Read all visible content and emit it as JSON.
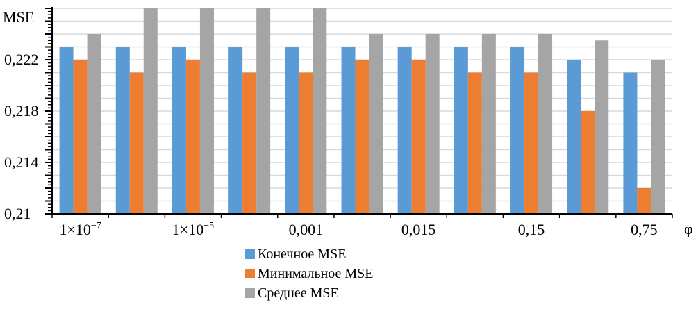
{
  "chart_data": {
    "type": "bar",
    "title": "",
    "ylabel": "MSE",
    "xlabel": "φ",
    "ylim": [
      0.21,
      0.226
    ],
    "y_ticks": [
      "0,21",
      "0,214",
      "0,218",
      "0,222"
    ],
    "y_tick_values": [
      0.21,
      0.214,
      0.218,
      0.222
    ],
    "x_tick_labels": [
      {
        "category_index": 0,
        "label": "1×10",
        "sup": "−7"
      },
      {
        "category_index": 2,
        "label": "1×10",
        "sup": "−5"
      },
      {
        "category_index": 4,
        "label": "0,001",
        "sup": ""
      },
      {
        "category_index": 6,
        "label": "0,015",
        "sup": ""
      },
      {
        "category_index": 8,
        "label": "0,15",
        "sup": ""
      },
      {
        "category_index": 10,
        "label": "0,75",
        "sup": ""
      }
    ],
    "categories": [
      "1×10−7",
      "",
      "1×10−5",
      "",
      "0,001",
      "",
      "0,015",
      "",
      "0,15",
      "",
      "0,75"
    ],
    "series": [
      {
        "name": "Конечное MSE",
        "color": "#5b9bd5",
        "values": [
          0.223,
          0.223,
          0.223,
          0.223,
          0.223,
          0.223,
          0.223,
          0.223,
          0.223,
          0.222,
          0.221
        ]
      },
      {
        "name": "Минимальное MSE",
        "color": "#ed7d31",
        "values": [
          0.222,
          0.221,
          0.222,
          0.221,
          0.221,
          0.222,
          0.222,
          0.221,
          0.221,
          0.218,
          0.212
        ]
      },
      {
        "name": "Среднее MSE",
        "color": "#a5a5a5",
        "values": [
          0.224,
          0.226,
          0.226,
          0.226,
          0.226,
          0.224,
          0.224,
          0.224,
          0.224,
          0.2235,
          0.222
        ]
      }
    ],
    "grid": true,
    "legend_position": "bottom"
  }
}
